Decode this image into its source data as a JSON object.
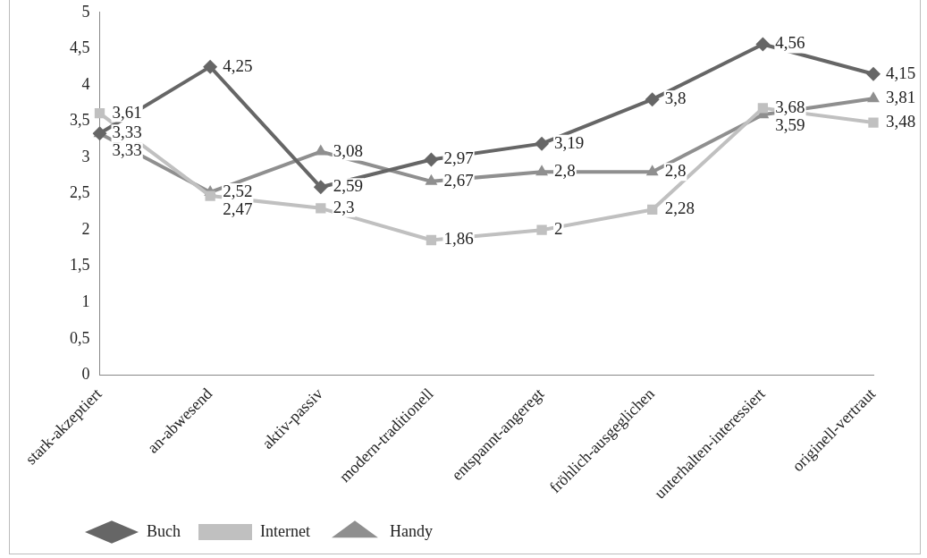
{
  "chart_data": {
    "type": "line",
    "categories": [
      "stark-akzeptiert",
      "an-abwesend",
      "aktiv-passiv",
      "modern-traditionell",
      "entspannt-angeregt",
      "fröhlich-ausgeglichen",
      "unterhalten-interessiert",
      "originell-vertraut"
    ],
    "series": [
      {
        "name": "Buch",
        "color": "#666666",
        "marker": "diamond",
        "values": [
          3.33,
          4.25,
          2.59,
          2.97,
          3.19,
          3.8,
          4.56,
          4.15
        ],
        "value_labels": [
          "3,33",
          "4,25",
          "2,59",
          "2,97",
          "3,19",
          "3,8",
          "4,56",
          "4,15"
        ]
      },
      {
        "name": "Internet",
        "color": "#c0c0c0",
        "marker": "square",
        "values": [
          3.61,
          2.47,
          2.3,
          1.86,
          2,
          2.28,
          3.68,
          3.48
        ],
        "value_labels": [
          "3,61",
          "2,47",
          "2,3",
          "1,86",
          "2",
          "2,28",
          "3,68",
          "3,48"
        ]
      },
      {
        "name": "Handy",
        "color": "#8f8f8f",
        "marker": "triangle",
        "values": [
          3.33,
          2.52,
          3.08,
          2.67,
          2.8,
          2.8,
          3.59,
          3.81
        ],
        "value_labels": [
          "3,33",
          "2,52",
          "3,08",
          "2,67",
          "2,8",
          "2,8",
          "3,59",
          "3,81"
        ]
      }
    ],
    "ylim": [
      0,
      5
    ],
    "yticks": [
      0,
      {
        "value": 0.5,
        "label": "0,5"
      },
      1,
      {
        "value": 1.5,
        "label": "1,5"
      },
      2,
      {
        "value": 2.5,
        "label": "2,5"
      },
      3,
      {
        "value": 3.5,
        "label": "3,5"
      },
      4,
      {
        "value": 4.5,
        "label": "4,5"
      },
      5
    ],
    "grid": false,
    "legend": "bottom left",
    "line_style": "solid"
  }
}
